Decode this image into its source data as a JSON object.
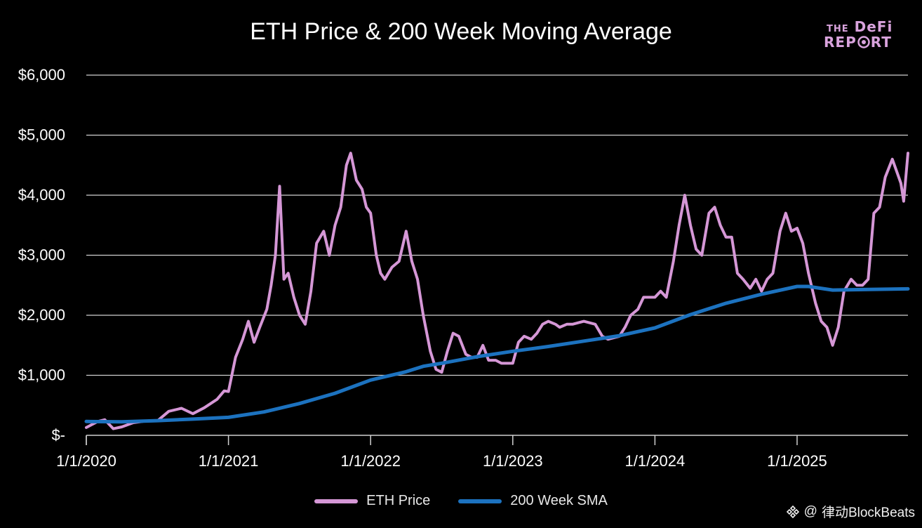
{
  "chart_data": {
    "type": "line",
    "title": "ETH Price & 200 Week Moving Average",
    "xlabel": "",
    "ylabel": "",
    "x_ticks": [
      "1/1/2020",
      "1/1/2021",
      "1/1/2022",
      "1/1/2023",
      "1/1/2024",
      "1/1/2025"
    ],
    "y_ticks": [
      "$-",
      "$1,000",
      "$2,000",
      "$3,000",
      "$4,000",
      "$5,000",
      "$6,000"
    ],
    "ylim": [
      0,
      6000
    ],
    "xlim": [
      2020.0,
      2025.78
    ],
    "grid": true,
    "legend_position": "bottom",
    "series": [
      {
        "name": "ETH Price",
        "color": "#d597d6",
        "points": [
          [
            2020.0,
            130
          ],
          [
            2020.08,
            230
          ],
          [
            2020.13,
            260
          ],
          [
            2020.19,
            110
          ],
          [
            2020.25,
            140
          ],
          [
            2020.33,
            210
          ],
          [
            2020.42,
            240
          ],
          [
            2020.5,
            240
          ],
          [
            2020.58,
            400
          ],
          [
            2020.67,
            450
          ],
          [
            2020.75,
            360
          ],
          [
            2020.83,
            460
          ],
          [
            2020.92,
            600
          ],
          [
            2020.97,
            740
          ],
          [
            2021.0,
            730
          ],
          [
            2021.05,
            1300
          ],
          [
            2021.1,
            1600
          ],
          [
            2021.14,
            1900
          ],
          [
            2021.18,
            1550
          ],
          [
            2021.22,
            1800
          ],
          [
            2021.27,
            2100
          ],
          [
            2021.3,
            2500
          ],
          [
            2021.33,
            3000
          ],
          [
            2021.36,
            4150
          ],
          [
            2021.39,
            2600
          ],
          [
            2021.42,
            2700
          ],
          [
            2021.46,
            2300
          ],
          [
            2021.5,
            2000
          ],
          [
            2021.54,
            1850
          ],
          [
            2021.58,
            2400
          ],
          [
            2021.62,
            3200
          ],
          [
            2021.67,
            3400
          ],
          [
            2021.71,
            3000
          ],
          [
            2021.75,
            3500
          ],
          [
            2021.79,
            3800
          ],
          [
            2021.83,
            4500
          ],
          [
            2021.86,
            4700
          ],
          [
            2021.9,
            4250
          ],
          [
            2021.94,
            4100
          ],
          [
            2021.97,
            3800
          ],
          [
            2022.0,
            3700
          ],
          [
            2022.04,
            3000
          ],
          [
            2022.07,
            2700
          ],
          [
            2022.1,
            2600
          ],
          [
            2022.15,
            2800
          ],
          [
            2022.2,
            2900
          ],
          [
            2022.25,
            3400
          ],
          [
            2022.29,
            2900
          ],
          [
            2022.33,
            2600
          ],
          [
            2022.37,
            2000
          ],
          [
            2022.42,
            1400
          ],
          [
            2022.46,
            1100
          ],
          [
            2022.5,
            1050
          ],
          [
            2022.54,
            1400
          ],
          [
            2022.58,
            1700
          ],
          [
            2022.62,
            1650
          ],
          [
            2022.67,
            1350
          ],
          [
            2022.71,
            1300
          ],
          [
            2022.75,
            1300
          ],
          [
            2022.79,
            1500
          ],
          [
            2022.83,
            1250
          ],
          [
            2022.88,
            1250
          ],
          [
            2022.92,
            1200
          ],
          [
            2022.96,
            1200
          ],
          [
            2023.0,
            1200
          ],
          [
            2023.04,
            1550
          ],
          [
            2023.08,
            1650
          ],
          [
            2023.13,
            1600
          ],
          [
            2023.17,
            1700
          ],
          [
            2023.21,
            1850
          ],
          [
            2023.25,
            1900
          ],
          [
            2023.3,
            1850
          ],
          [
            2023.33,
            1800
          ],
          [
            2023.38,
            1850
          ],
          [
            2023.42,
            1850
          ],
          [
            2023.5,
            1900
          ],
          [
            2023.58,
            1850
          ],
          [
            2023.63,
            1650
          ],
          [
            2023.67,
            1600
          ],
          [
            2023.75,
            1650
          ],
          [
            2023.79,
            1800
          ],
          [
            2023.83,
            2000
          ],
          [
            2023.88,
            2100
          ],
          [
            2023.92,
            2300
          ],
          [
            2023.96,
            2300
          ],
          [
            2024.0,
            2300
          ],
          [
            2024.04,
            2400
          ],
          [
            2024.08,
            2300
          ],
          [
            2024.13,
            2900
          ],
          [
            2024.17,
            3500
          ],
          [
            2024.21,
            4000
          ],
          [
            2024.25,
            3500
          ],
          [
            2024.29,
            3100
          ],
          [
            2024.33,
            3000
          ],
          [
            2024.38,
            3700
          ],
          [
            2024.42,
            3800
          ],
          [
            2024.46,
            3500
          ],
          [
            2024.5,
            3300
          ],
          [
            2024.54,
            3300
          ],
          [
            2024.58,
            2700
          ],
          [
            2024.62,
            2600
          ],
          [
            2024.67,
            2450
          ],
          [
            2024.71,
            2600
          ],
          [
            2024.75,
            2400
          ],
          [
            2024.79,
            2600
          ],
          [
            2024.83,
            2700
          ],
          [
            2024.88,
            3400
          ],
          [
            2024.92,
            3700
          ],
          [
            2024.96,
            3400
          ],
          [
            2025.0,
            3450
          ],
          [
            2025.04,
            3200
          ],
          [
            2025.08,
            2700
          ],
          [
            2025.13,
            2200
          ],
          [
            2025.17,
            1900
          ],
          [
            2025.21,
            1800
          ],
          [
            2025.25,
            1500
          ],
          [
            2025.29,
            1800
          ],
          [
            2025.33,
            2400
          ],
          [
            2025.38,
            2600
          ],
          [
            2025.42,
            2500
          ],
          [
            2025.46,
            2500
          ],
          [
            2025.5,
            2600
          ],
          [
            2025.54,
            3700
          ],
          [
            2025.58,
            3800
          ],
          [
            2025.62,
            4300
          ],
          [
            2025.67,
            4600
          ],
          [
            2025.7,
            4400
          ],
          [
            2025.73,
            4200
          ],
          [
            2025.75,
            3900
          ],
          [
            2025.78,
            4700
          ]
        ]
      },
      {
        "name": "200 Week SMA",
        "color": "#1c72bf",
        "points": [
          [
            2020.0,
            230
          ],
          [
            2020.25,
            225
          ],
          [
            2020.5,
            245
          ],
          [
            2020.75,
            270
          ],
          [
            2021.0,
            300
          ],
          [
            2021.25,
            390
          ],
          [
            2021.5,
            530
          ],
          [
            2021.75,
            700
          ],
          [
            2022.0,
            920
          ],
          [
            2022.25,
            1060
          ],
          [
            2022.37,
            1150
          ],
          [
            2022.5,
            1200
          ],
          [
            2022.75,
            1310
          ],
          [
            2023.0,
            1400
          ],
          [
            2023.25,
            1480
          ],
          [
            2023.5,
            1570
          ],
          [
            2023.75,
            1660
          ],
          [
            2024.0,
            1790
          ],
          [
            2024.25,
            2010
          ],
          [
            2024.5,
            2200
          ],
          [
            2024.75,
            2350
          ],
          [
            2025.0,
            2480
          ],
          [
            2025.08,
            2480
          ],
          [
            2025.25,
            2420
          ],
          [
            2025.5,
            2430
          ],
          [
            2025.78,
            2440
          ]
        ]
      }
    ]
  },
  "logo": {
    "line1_small": "THE",
    "line1": "DeFi",
    "line2_a": "REP",
    "line2_b": "RT"
  },
  "watermark": {
    "icon": "binance-diamond-icon",
    "at": "@",
    "name": "律动BlockBeats"
  }
}
